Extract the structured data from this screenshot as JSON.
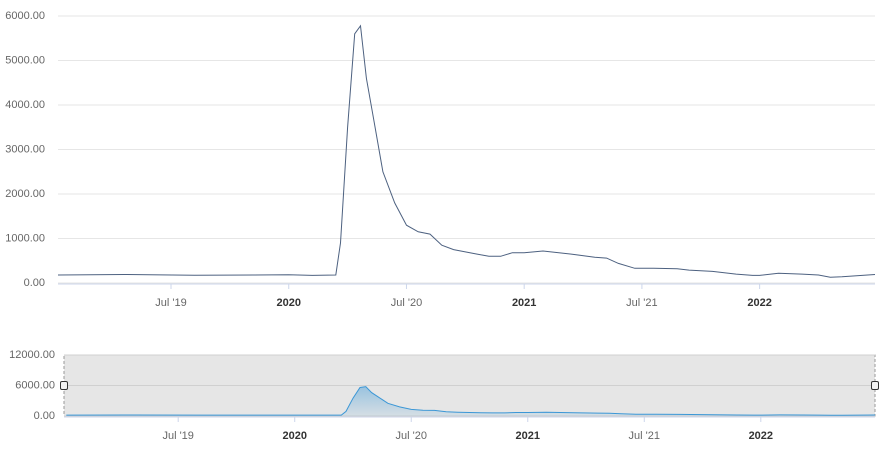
{
  "chart_data": [
    {
      "type": "line",
      "color": "#4d6180",
      "xlim": [
        2019.02,
        2022.49
      ],
      "ylim": [
        0,
        6000
      ],
      "xticks": [
        {
          "value": 2019.5,
          "label": "Jul '19"
        },
        2020,
        {
          "value": 2020.5,
          "label": "Jul '20"
        },
        2021,
        {
          "value": 2021.5,
          "label": "Jul '21"
        },
        2022
      ],
      "yticks": [
        {
          "value": 0,
          "label": "0.00"
        },
        {
          "value": 1000,
          "label": "1000.00"
        },
        {
          "value": 2000,
          "label": "2000.00"
        },
        {
          "value": 3000,
          "label": "3000.00"
        },
        {
          "value": 4000,
          "label": "4000.00"
        },
        {
          "value": 5000,
          "label": "5000.00"
        },
        {
          "value": 6000,
          "label": "6000.00"
        }
      ],
      "grid": true,
      "x": [
        2019.02,
        2019.3,
        2019.6,
        2020.0,
        2020.1,
        2020.2,
        2020.22,
        2020.25,
        2020.28,
        2020.305,
        2020.33,
        2020.36,
        2020.4,
        2020.45,
        2020.5,
        2020.55,
        2020.6,
        2020.65,
        2020.7,
        2020.8,
        2020.85,
        2020.9,
        2020.95,
        2021.0,
        2021.08,
        2021.2,
        2021.3,
        2021.35,
        2021.4,
        2021.47,
        2021.55,
        2021.65,
        2021.7,
        2021.8,
        2021.9,
        2021.97,
        2022.0,
        2022.08,
        2022.18,
        2022.25,
        2022.3,
        2022.35,
        2022.49
      ],
      "values": [
        180,
        190,
        175,
        185,
        170,
        180,
        900,
        3500,
        5600,
        5780,
        4600,
        3700,
        2500,
        1800,
        1300,
        1150,
        1100,
        850,
        750,
        650,
        600,
        600,
        680,
        680,
        720,
        650,
        580,
        560,
        440,
        330,
        330,
        320,
        290,
        260,
        200,
        170,
        170,
        220,
        200,
        180,
        130,
        140,
        190
      ]
    },
    {
      "type": "navigator",
      "color": "#3b97d6",
      "xlim": [
        2019.01,
        2022.49
      ],
      "ylim": [
        0,
        12000
      ],
      "xticks": [
        {
          "value": 2019.5,
          "label": "Jul '19"
        },
        2020,
        {
          "value": 2020.5,
          "label": "Jul '20"
        },
        2021,
        {
          "value": 2021.5,
          "label": "Jul '21"
        },
        2022
      ],
      "yticks": [
        {
          "value": 0,
          "label": "0.00"
        },
        {
          "value": 6000,
          "label": "6000.00"
        },
        {
          "value": 12000,
          "label": "12000.00"
        }
      ]
    }
  ]
}
